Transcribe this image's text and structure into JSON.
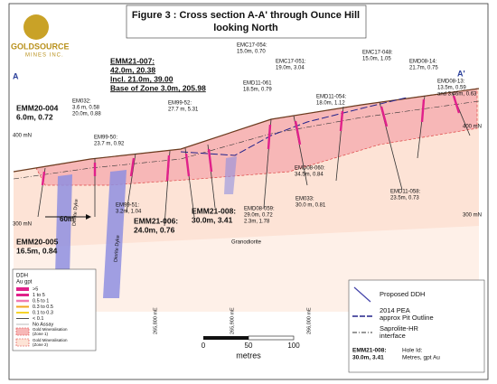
{
  "header": {
    "title": [
      "Figure 3 : Cross section A-A' through Ounce Hill",
      "looking North"
    ]
  },
  "logo": {
    "name": "GOLDSOURCE",
    "sub": "MINES INC."
  },
  "section": {
    "start": "A",
    "end": "A'",
    "elevations": [
      "400 mN",
      "300 mN"
    ],
    "eastings": [
      "265,800 mE",
      "265,900 mE",
      "266,000 mE"
    ],
    "width_label": "60m",
    "rock": "Granodiorite",
    "dyke": "Diorite Dyke"
  },
  "holes": [
    {
      "lines": [
        "EMM20-004",
        "6.0m, 0.72"
      ]
    },
    {
      "lines": [
        "EM032:",
        "3.6 m, 0.58",
        "20.0m, 0.88"
      ]
    },
    {
      "lines": [
        "EMM21-007:",
        "42.0m, 20.38",
        "Incl. 21.0m, 39.00",
        "Base of Zone 3.0m, 205.98"
      ]
    },
    {
      "lines": [
        "EM99-50:",
        "23.7 m, 0.92"
      ]
    },
    {
      "lines": [
        "EM99-52:",
        "27.7 m, 5.31"
      ]
    },
    {
      "lines": [
        "EMC17-054:",
        "15.0m, 0.70"
      ]
    },
    {
      "lines": [
        "EMD11-061",
        "18.5m, 0.79"
      ]
    },
    {
      "lines": [
        "EMC17-051:",
        "19.0m, 3.04"
      ]
    },
    {
      "lines": [
        "EMD11-054:",
        "18.0m, 1.12"
      ]
    },
    {
      "lines": [
        "EMC17-048:",
        "15.0m, 1.05"
      ]
    },
    {
      "lines": [
        "EMD08-14:",
        "21.7m, 0.75"
      ]
    },
    {
      "lines": [
        "EMD08-13:",
        "13.5m, 0.59",
        "and 3.46m, 0.63"
      ]
    },
    {
      "lines": [
        "EMD08-060:",
        "34.5m, 0.84"
      ]
    },
    {
      "lines": [
        "EMD11-058:",
        "23.5m, 0.73"
      ]
    },
    {
      "lines": [
        "EM033:",
        "30.0 m, 0.81"
      ]
    },
    {
      "lines": [
        "EMD08-059:",
        "29.0m, 0.72",
        "2.3m, 1.78"
      ]
    },
    {
      "lines": [
        "EMM21-008:",
        "30.0m, 3.41"
      ]
    },
    {
      "lines": [
        "EMM21-006:",
        "24.0m, 0.76"
      ]
    },
    {
      "lines": [
        "EM99-51:",
        "3.2m, 1.04"
      ]
    },
    {
      "lines": [
        "EMM20-005",
        "16.5m, 0.84"
      ]
    }
  ],
  "legend_left": {
    "title": [
      "DDH",
      "Au gpt"
    ],
    "grades": [
      ">5",
      "1   to  5",
      "0.5  to  1",
      "0.3  to  0.5",
      "0.1  to  0.3",
      "< 0.1",
      "No Assay"
    ],
    "zones": [
      [
        "Gold Mineralisation",
        "(Zone 1)"
      ],
      [
        "Gold Mineralisation",
        "(Zone 2)"
      ]
    ]
  },
  "scale": {
    "ticks": [
      "0",
      "50",
      "100"
    ],
    "unit": "metres"
  },
  "legend_right": {
    "items": [
      [
        "Proposed DDH"
      ],
      [
        "2014 PEA",
        "approx Pit Outline"
      ],
      [
        "Saprolite-HR",
        "interface"
      ]
    ],
    "example": {
      "id": [
        "EMM21-008:",
        "30.0m, 3.41"
      ],
      "key": [
        "Hole Id:",
        "Metres, gpt Au"
      ]
    }
  }
}
